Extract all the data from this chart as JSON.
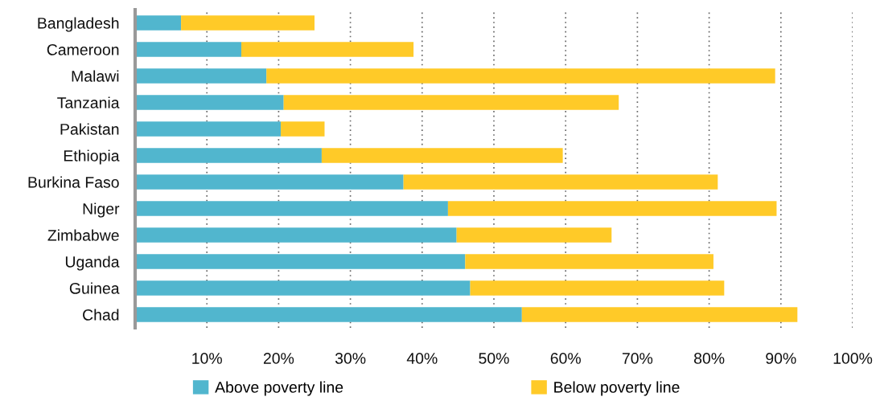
{
  "chart_data": {
    "type": "bar",
    "orientation": "horizontal",
    "stacked": true,
    "categories": [
      "Bangladesh",
      "Cameroon",
      "Malawi",
      "Tanzania",
      "Pakistan",
      "Ethiopia",
      "Burkina Faso",
      "Niger",
      "Zimbabwe",
      "Uganda",
      "Guinea",
      "Chad"
    ],
    "series": [
      {
        "name": "Above poverty line",
        "color": "#51b6ce",
        "values": [
          6.4,
          14.8,
          18.3,
          20.7,
          20.3,
          26.0,
          37.4,
          43.6,
          44.8,
          46.0,
          46.7,
          53.9
        ]
      },
      {
        "name": "Below poverty line",
        "color": "#ffca28",
        "values": [
          18.6,
          24.0,
          70.9,
          46.7,
          6.1,
          33.6,
          43.8,
          45.8,
          21.6,
          34.6,
          35.4,
          38.4
        ]
      }
    ],
    "xlim": [
      0,
      100
    ],
    "xticks": [
      {
        "value": 10,
        "label": "10%"
      },
      {
        "value": 20,
        "label": "20%"
      },
      {
        "value": 30,
        "label": "30%"
      },
      {
        "value": 40,
        "label": "40%"
      },
      {
        "value": 50,
        "label": "50%"
      },
      {
        "value": 60,
        "label": "60%"
      },
      {
        "value": 70,
        "label": "70%"
      },
      {
        "value": 80,
        "label": "80%"
      },
      {
        "value": 90,
        "label": "90%"
      },
      {
        "value": 100,
        "label": "100%"
      }
    ],
    "grid": "x",
    "legend": "bottom"
  }
}
